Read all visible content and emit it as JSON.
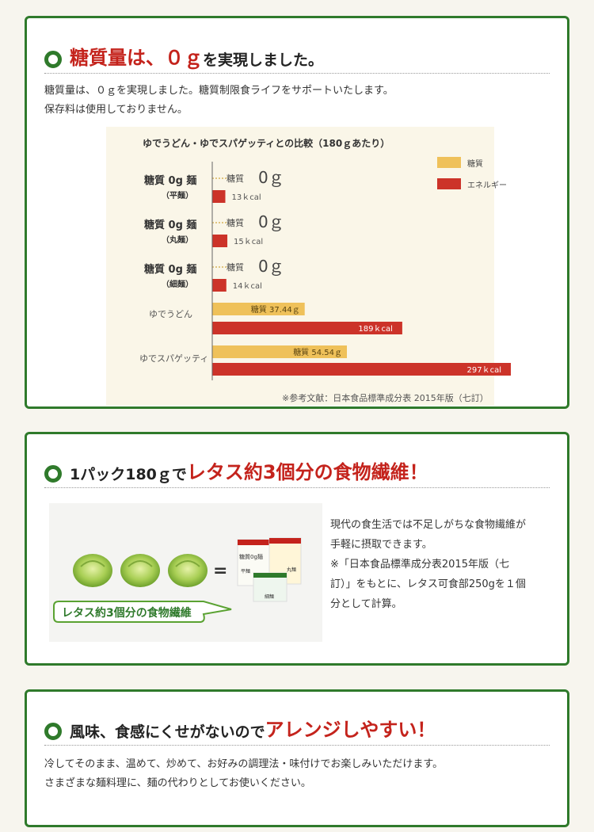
{
  "section1": {
    "heading_red": "糖質量は、０ｇ",
    "heading_black": "を実現しました。",
    "text_lines": [
      "糖質量は、０ｇを実現しました。糖質制限食ライフをサポートいたします。",
      "保存料は使用しておりません。"
    ]
  },
  "chart_data": {
    "type": "bar",
    "title": "ゆでうどん・ゆでスパゲッティとの比較（180ｇあたり）",
    "source": "※参考文献：日本食品標準成分表 2015年版（七訂）",
    "legend_position": "top-right",
    "series": [
      {
        "name": "糖質",
        "color": "#efc15a",
        "unit": "g",
        "values": [
          0,
          0,
          0,
          37.44,
          54.54
        ]
      },
      {
        "name": "エネルギー",
        "color": "#cc3329",
        "unit": "kcal",
        "values": [
          13,
          15,
          14,
          189,
          297
        ]
      }
    ],
    "categories": [
      {
        "name": "糖質 0g 麺",
        "sub": "（平麺）",
        "carb_label": "糖質",
        "carb_value": "0ｇ",
        "energy_label": "13ｋcal"
      },
      {
        "name": "糖質 0g 麺",
        "sub": "（丸麺）",
        "carb_label": "糖質",
        "carb_value": "0ｇ",
        "energy_label": "15ｋcal"
      },
      {
        "name": "糖質 0g 麺",
        "sub": "（細麺）",
        "carb_label": "糖質",
        "carb_value": "0ｇ",
        "energy_label": "14ｋcal"
      },
      {
        "name": "ゆでうどん",
        "sub": "",
        "carb_label": "糖質 37.44ｇ",
        "carb_value": "",
        "energy_label": "189ｋcal"
      },
      {
        "name": "ゆでスパゲッティ",
        "sub": "",
        "carb_label": "糖質 54.54ｇ",
        "carb_value": "",
        "energy_label": "297ｋcal"
      }
    ]
  },
  "section2": {
    "heading_black": "1パック180ｇで",
    "heading_red": "レタス約3個分の食物繊維！",
    "image_label": "レタス約3個分の食物繊維",
    "equals": "=",
    "package_brand": "糖質0g麺",
    "package_labels": [
      "平麺",
      "丸麺",
      "細麺"
    ],
    "text_lines": [
      "現代の食生活では不足しがちな食物繊維が",
      "手軽に摂取できます。",
      "※「日本食品標準成分表2015年版（七",
      "訂）」をもとに、レタス可食部250gを１個",
      "分として計算。"
    ]
  },
  "section3": {
    "heading_black": "風味、食感にくせがないので",
    "heading_red": "アレンジしやすい！",
    "text_lines": [
      "冷してそのまま、温めて、炒めて、お好みの調理法・味付けでお楽しみいただけます。",
      "さまざまな麺料理に、麺の代わりとしてお使いください。"
    ]
  },
  "colors": {
    "green": "#2f7a2b",
    "red": "#c4231c",
    "carb": "#efc15a",
    "energy": "#cc3329"
  }
}
